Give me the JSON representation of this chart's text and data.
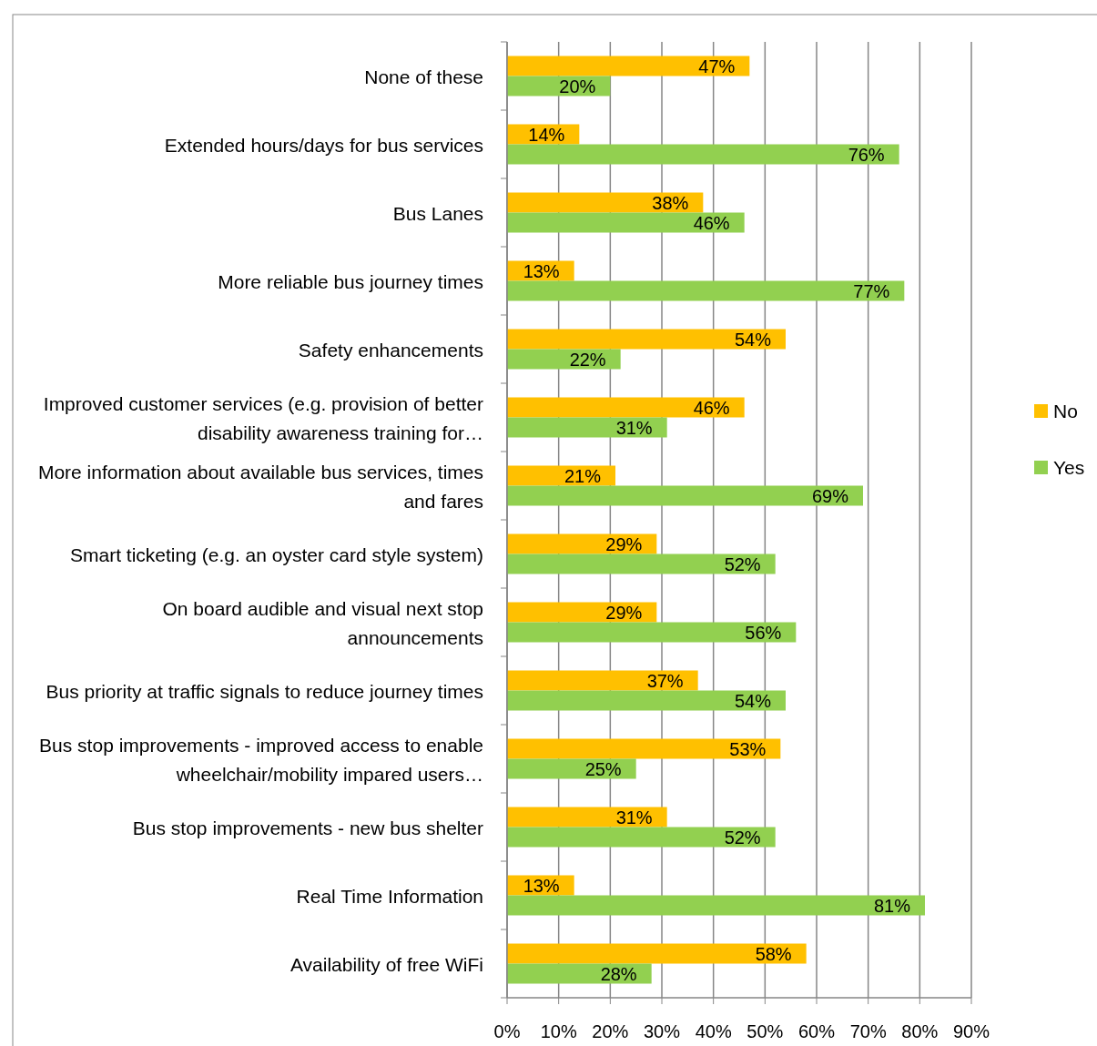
{
  "chart_data": {
    "type": "bar",
    "orientation": "horizontal",
    "categories": [
      "None of these",
      "Extended hours/days for bus services",
      "Bus Lanes",
      "More reliable bus journey times",
      "Safety enhancements",
      "Improved customer services (e.g. provision of better disability awareness training for…",
      "More information about available bus services, times and fares",
      "Smart ticketing (e.g. an oyster card style system)",
      "On board audible and visual next stop announcements",
      "Bus priority at traffic signals to reduce journey times",
      "Bus stop improvements - improved access to enable wheelchair/mobility impared users…",
      "Bus stop improvements - new bus shelter",
      "Real Time Information",
      "Availability of free WiFi"
    ],
    "series": [
      {
        "name": "No",
        "color": "#ffc000",
        "values": [
          47,
          14,
          38,
          13,
          54,
          46,
          21,
          29,
          29,
          37,
          53,
          31,
          13,
          58
        ],
        "value_labels": [
          "47%",
          "14%",
          "38%",
          "13%",
          "54%",
          "46%",
          "21%",
          "29%",
          "29%",
          "37%",
          "53%",
          "31%",
          "13%",
          "58%"
        ]
      },
      {
        "name": "Yes",
        "color": "#92d050",
        "values": [
          20,
          76,
          46,
          77,
          22,
          31,
          69,
          52,
          56,
          54,
          25,
          52,
          81,
          28
        ],
        "value_labels": [
          "20%",
          "76%",
          "46%",
          "77%",
          "22%",
          "31%",
          "69%",
          "52%",
          "56%",
          "54%",
          "25%",
          "52%",
          "81%",
          "28%"
        ]
      }
    ],
    "xlim": [
      0,
      90
    ],
    "xticks": [
      {
        "value": 0,
        "label": "0%"
      },
      {
        "value": 10,
        "label": "10%"
      },
      {
        "value": 20,
        "label": "20%"
      },
      {
        "value": 30,
        "label": "30%"
      },
      {
        "value": 40,
        "label": "40%"
      },
      {
        "value": 50,
        "label": "50%"
      },
      {
        "value": 60,
        "label": "60%"
      },
      {
        "value": 70,
        "label": "70%"
      },
      {
        "value": 80,
        "label": "80%"
      },
      {
        "value": 90,
        "label": "90%"
      }
    ],
    "grid": "x",
    "legend": "right"
  }
}
